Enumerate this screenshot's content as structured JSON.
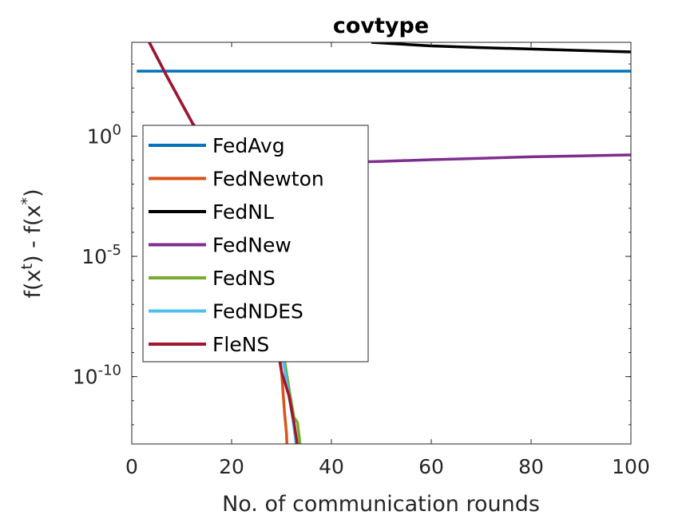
{
  "chart_data": {
    "type": "line",
    "title": "covtype",
    "xlabel": "No. of communication rounds",
    "ylabel_base": "f(x",
    "ylabel_sup1": "t",
    "ylabel_mid": ") - f(x",
    "ylabel_sup2": "*",
    "ylabel_end": ")",
    "xlim": [
      0,
      100
    ],
    "yscale": "log",
    "ylim_exp": [
      -12.8,
      3.9
    ],
    "xticks": [
      "0",
      "20",
      "40",
      "60",
      "80",
      "100"
    ],
    "xtick_values": [
      0,
      20,
      40,
      60,
      80,
      100
    ],
    "yticks": [
      {
        "base": "10",
        "exp": "0",
        "value_exp": 0
      },
      {
        "base": "10",
        "exp": "-5",
        "value_exp": -5
      },
      {
        "base": "10",
        "exp": "-10",
        "value_exp": -10
      }
    ],
    "grid": false,
    "legend_position": "top-left",
    "series": [
      {
        "name": "FedAvg",
        "color": "#0072BD",
        "x": [
          1,
          100
        ],
        "y_exp": [
          2.7,
          2.7
        ]
      },
      {
        "name": "FedNewton",
        "color": "#D95319",
        "x": [
          3,
          7,
          12,
          17,
          22,
          27,
          29,
          30,
          30.6,
          31,
          31.2
        ],
        "y_exp": [
          4.1,
          2.5,
          0.6,
          -1.5,
          -3.7,
          -6.2,
          -8.1,
          -9.8,
          -11.5,
          -12.4,
          -13.5
        ]
      },
      {
        "name": "FedNL",
        "color": "#000000",
        "x": [
          48,
          60,
          70,
          80,
          90,
          100
        ],
        "y_exp": [
          3.9,
          3.75,
          3.68,
          3.62,
          3.56,
          3.5
        ]
      },
      {
        "name": "FedNew",
        "color": "#7E2F8E",
        "x": [
          3,
          7,
          12,
          17,
          22,
          30,
          40,
          50,
          60,
          70,
          80,
          90,
          100
        ],
        "y_exp": [
          4.1,
          2.5,
          0.6,
          -0.9,
          -1.2,
          -1.2,
          -1.1,
          -1.05,
          -0.98,
          -0.92,
          -0.86,
          -0.82,
          -0.78
        ]
      },
      {
        "name": "FedNS",
        "color": "#77AC30",
        "x": [
          3,
          7,
          12,
          17,
          22,
          27,
          30,
          31.5,
          32.5,
          33.2,
          33.6,
          34
        ],
        "y_exp": [
          4.1,
          2.5,
          0.6,
          -1.5,
          -3.7,
          -6.2,
          -8.5,
          -10.5,
          -11.7,
          -11.9,
          -12.6,
          -13.5
        ]
      },
      {
        "name": "FedNDES",
        "color": "#4DBEEE",
        "x": [
          3,
          7,
          12,
          17,
          22,
          27,
          29.5,
          31,
          32.2,
          32.8,
          33.3
        ],
        "y_exp": [
          4.1,
          2.5,
          0.6,
          -1.5,
          -3.7,
          -6.2,
          -8.2,
          -10.2,
          -11.7,
          -12.6,
          -13.5
        ]
      },
      {
        "name": "FleNS",
        "color": "#A2142F",
        "x": [
          3,
          7,
          12,
          17,
          22,
          27,
          30,
          31.5,
          32.5,
          33,
          33.5
        ],
        "y_exp": [
          4.1,
          2.5,
          0.6,
          -1.5,
          -3.7,
          -6.2,
          -9.8,
          -10.8,
          -11.9,
          -12.6,
          -13.5
        ]
      }
    ]
  }
}
